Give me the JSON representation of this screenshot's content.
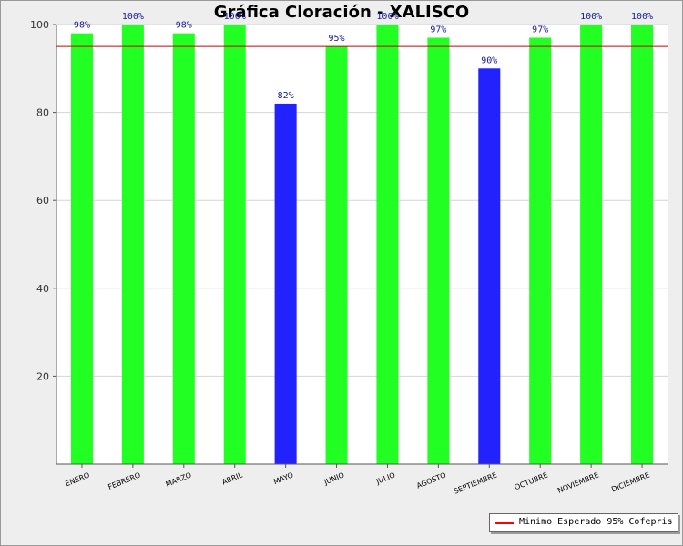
{
  "chart_data": {
    "type": "bar",
    "title": "Gráfica Cloración - XALISCO",
    "categories": [
      "ENERO",
      "FEBRERO",
      "MARZO",
      "ABRIL",
      "MAYO",
      "JUNIO",
      "JULIO",
      "AGOSTO",
      "SEPTIEMBRE",
      "OCTUBRE",
      "NOVIEMBRE",
      "DICIEMBRE"
    ],
    "values": [
      98,
      100,
      98,
      100,
      82,
      95,
      100,
      97,
      90,
      97,
      100,
      100
    ],
    "data_labels": [
      "98%",
      "100%",
      "98%",
      "100%",
      "82%",
      "95%",
      "100%",
      "97%",
      "90%",
      "97%",
      "100%",
      "100%"
    ],
    "bar_colors": [
      "#22ff22",
      "#22ff22",
      "#22ff22",
      "#22ff22",
      "#2222ff",
      "#22ff22",
      "#22ff22",
      "#22ff22",
      "#2222ff",
      "#22ff22",
      "#22ff22",
      "#22ff22"
    ],
    "ylim": [
      0,
      100
    ],
    "yticks": [
      20,
      40,
      60,
      80,
      100
    ],
    "threshold": {
      "value": 95,
      "color": "#cc0000"
    },
    "legend": {
      "label": "Minimo Esperado 95% Cofepris",
      "color": "#ff0000",
      "placement": "bottom-right"
    },
    "grid": true,
    "colors": {
      "compliant": "#22ff22",
      "below_minimum": "#2222ff",
      "plot_background": "#ffffff",
      "page_background": "#eeeeee"
    }
  }
}
